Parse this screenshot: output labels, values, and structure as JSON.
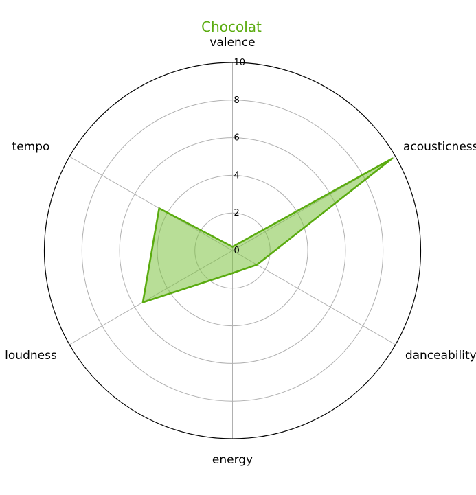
{
  "chart_data": {
    "type": "radar",
    "title": "Chocolat",
    "axes": [
      "valence",
      "acousticness",
      "danceability",
      "energy",
      "loudness",
      "tempo"
    ],
    "series": [
      {
        "values": [
          0.2,
          9.8,
          1.5,
          1.2,
          5.5,
          4.5
        ]
      }
    ],
    "rlim": [
      0,
      10
    ],
    "rticks": [
      "0",
      "2",
      "4",
      "6",
      "8",
      "10"
    ],
    "grid": true,
    "colors": {
      "line": "#5aab0f",
      "fill": "#7dc242",
      "fill_opacity": 0.55,
      "title": "#5aab0f"
    }
  }
}
